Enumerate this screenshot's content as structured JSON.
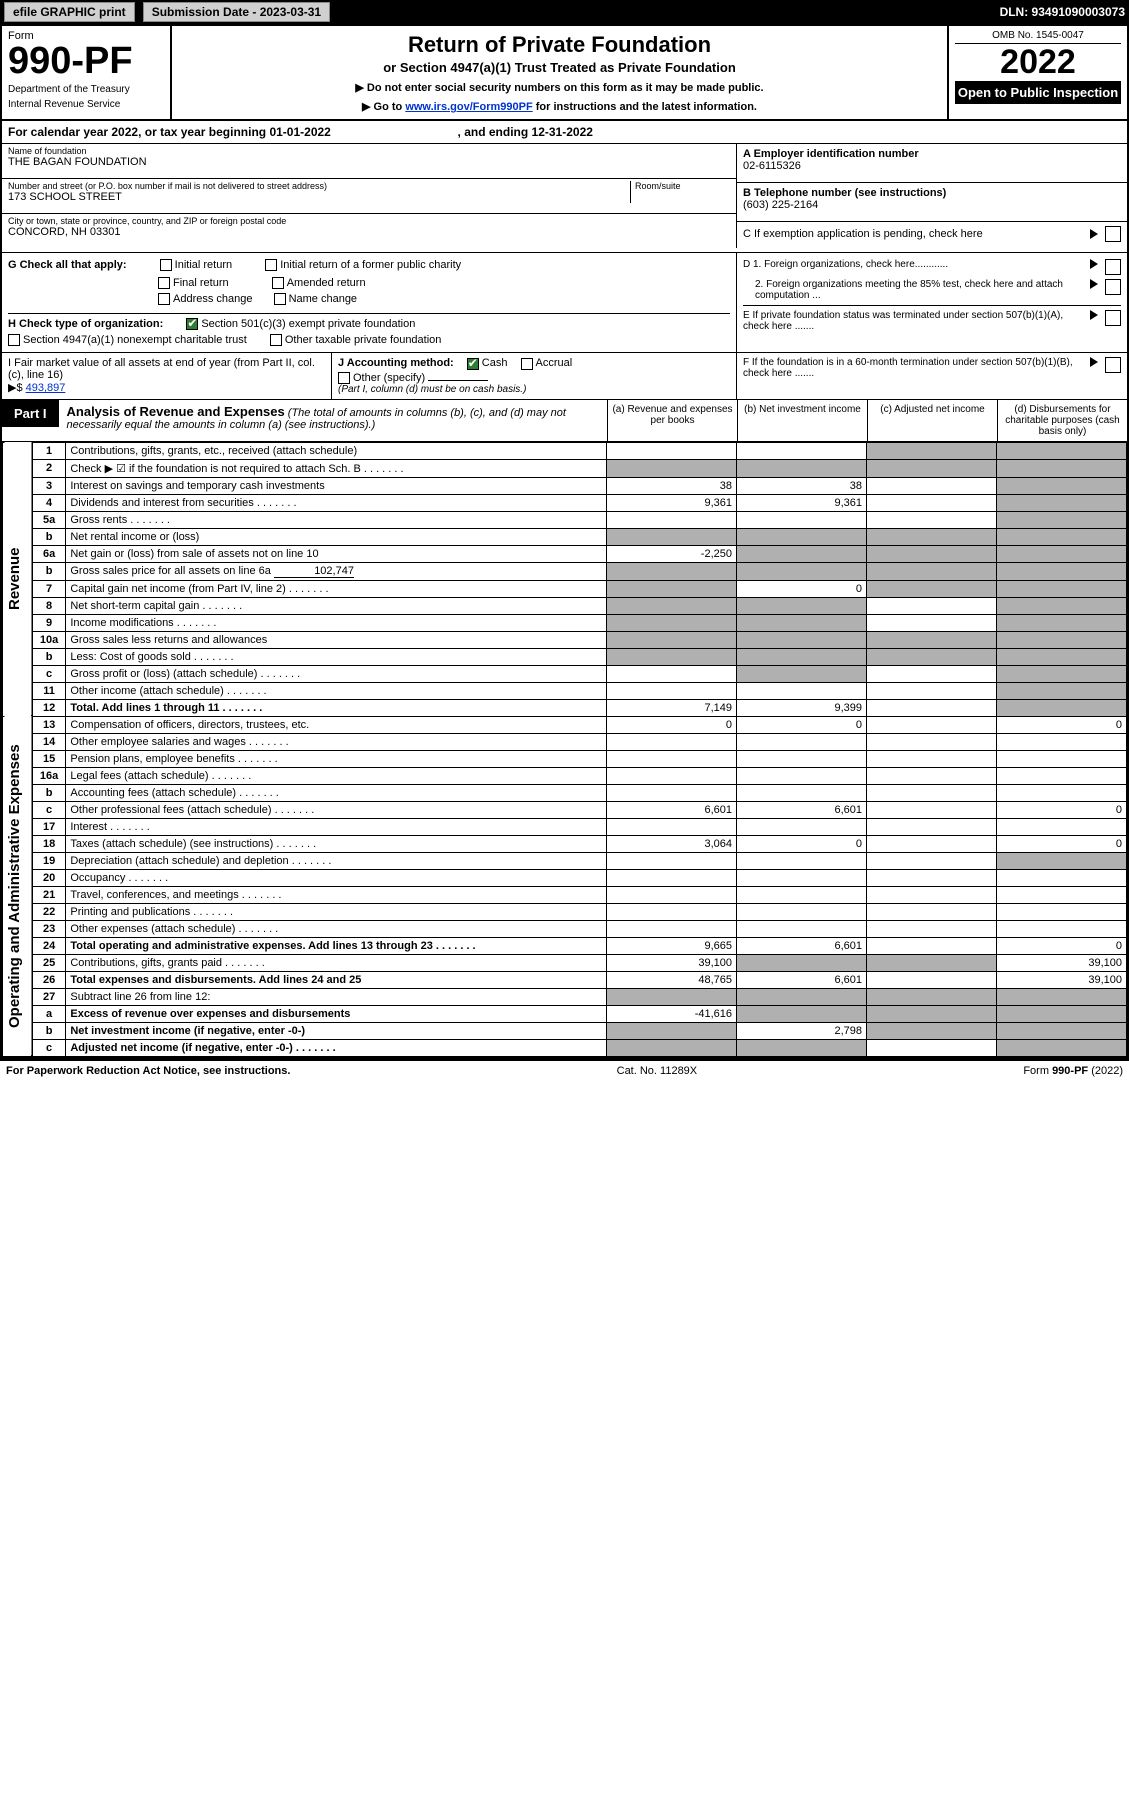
{
  "topbar": {
    "efile": "efile GRAPHIC print",
    "submission_label": "Submission Date - 2023-03-31",
    "dln": "DLN: 93491090003073"
  },
  "header": {
    "form_word": "Form",
    "form_number": "990-PF",
    "dept1": "Department of the Treasury",
    "dept2": "Internal Revenue Service",
    "title": "Return of Private Foundation",
    "subtitle": "or Section 4947(a)(1) Trust Treated as Private Foundation",
    "note1": "▶ Do not enter social security numbers on this form as it may be made public.",
    "note2_pre": "▶ Go to ",
    "note2_link": "www.irs.gov/Form990PF",
    "note2_post": " for instructions and the latest information.",
    "omb": "OMB No. 1545-0047",
    "year": "2022",
    "open": "Open to Public Inspection"
  },
  "cal": {
    "text_pre": "For calendar year 2022, or tax year beginning ",
    "begin": "01-01-2022",
    "text_mid": " , and ending ",
    "end": "12-31-2022"
  },
  "id": {
    "name_label": "Name of foundation",
    "name": "THE BAGAN FOUNDATION",
    "addr_label": "Number and street (or P.O. box number if mail is not delivered to street address)",
    "addr": "173 SCHOOL STREET",
    "room_label": "Room/suite",
    "city_label": "City or town, state or province, country, and ZIP or foreign postal code",
    "city": "CONCORD, NH  03301",
    "ein_label": "A Employer identification number",
    "ein": "02-6115326",
    "tel_label": "B Telephone number (see instructions)",
    "tel": "(603) 225-2164",
    "c_label": "C If exemption application is pending, check here"
  },
  "checks": {
    "g_label": "G Check all that apply:",
    "g_items": [
      "Initial return",
      "Initial return of a former public charity",
      "Final return",
      "Amended return",
      "Address change",
      "Name change"
    ],
    "h_label": "H Check type of organization:",
    "h1": "Section 501(c)(3) exempt private foundation",
    "h2": "Section 4947(a)(1) nonexempt charitable trust",
    "h3": "Other taxable private foundation",
    "i_label": "I Fair market value of all assets at end of year (from Part II, col. (c), line 16)",
    "i_val": "493,897",
    "j_label": "J Accounting method:",
    "j_cash": "Cash",
    "j_accrual": "Accrual",
    "j_other": "Other (specify)",
    "j_note": "(Part I, column (d) must be on cash basis.)",
    "d1": "D 1. Foreign organizations, check here............",
    "d2": "2. Foreign organizations meeting the 85% test, check here and attach computation ...",
    "e": "E  If private foundation status was terminated under section 507(b)(1)(A), check here .......",
    "f": "F  If the foundation is in a 60-month termination under section 507(b)(1)(B), check here .......",
    "tri": "▶"
  },
  "part1": {
    "tab": "Part I",
    "title": "Analysis of Revenue and Expenses",
    "note": " (The total of amounts in columns (b), (c), and (d) may not necessarily equal the amounts in column (a) (see instructions).)",
    "cols": {
      "a": "(a) Revenue and expenses per books",
      "b": "(b) Net investment income",
      "c": "(c) Adjusted net income",
      "d": "(d) Disbursements for charitable purposes (cash basis only)"
    }
  },
  "side": {
    "revenue": "Revenue",
    "expenses": "Operating and Administrative Expenses"
  },
  "lines": [
    {
      "n": "1",
      "d": "Contributions, gifts, grants, etc., received (attach schedule)",
      "a": "",
      "b": "",
      "c": "shade",
      "dcol": "shade"
    },
    {
      "n": "2",
      "d": "Check ▶ ☑ if the foundation is not required to attach Sch. B",
      "dotted": true,
      "a": "shade",
      "b": "shade",
      "c": "shade",
      "dcol": "shade"
    },
    {
      "n": "3",
      "d": "Interest on savings and temporary cash investments",
      "a": "38",
      "b": "38",
      "c": "",
      "dcol": "shade"
    },
    {
      "n": "4",
      "d": "Dividends and interest from securities",
      "dotted": true,
      "a": "9,361",
      "b": "9,361",
      "c": "",
      "dcol": "shade"
    },
    {
      "n": "5a",
      "d": "Gross rents",
      "dotted": true,
      "a": "",
      "b": "",
      "c": "",
      "dcol": "shade"
    },
    {
      "n": "b",
      "d": "Net rental income or (loss)",
      "a": "shade",
      "b": "shade",
      "c": "shade",
      "dcol": "shade"
    },
    {
      "n": "6a",
      "d": "Net gain or (loss) from sale of assets not on line 10",
      "a": "-2,250",
      "b": "shade",
      "c": "shade",
      "dcol": "shade"
    },
    {
      "n": "b",
      "d": "Gross sales price for all assets on line 6a",
      "inline": "102,747",
      "a": "shade",
      "b": "shade",
      "c": "shade",
      "dcol": "shade"
    },
    {
      "n": "7",
      "d": "Capital gain net income (from Part IV, line 2)",
      "dotted": true,
      "a": "shade",
      "b": "0",
      "c": "shade",
      "dcol": "shade"
    },
    {
      "n": "8",
      "d": "Net short-term capital gain",
      "dotted": true,
      "a": "shade",
      "b": "shade",
      "c": "",
      "dcol": "shade"
    },
    {
      "n": "9",
      "d": "Income modifications",
      "dotted": true,
      "a": "shade",
      "b": "shade",
      "c": "",
      "dcol": "shade"
    },
    {
      "n": "10a",
      "d": "Gross sales less returns and allowances",
      "a": "shade",
      "b": "shade",
      "c": "shade",
      "dcol": "shade"
    },
    {
      "n": "b",
      "d": "Less: Cost of goods sold",
      "dotted": true,
      "a": "shade",
      "b": "shade",
      "c": "shade",
      "dcol": "shade"
    },
    {
      "n": "c",
      "d": "Gross profit or (loss) (attach schedule)",
      "dotted": true,
      "a": "",
      "b": "shade",
      "c": "",
      "dcol": "shade"
    },
    {
      "n": "11",
      "d": "Other income (attach schedule)",
      "dotted": true,
      "a": "",
      "b": "",
      "c": "",
      "dcol": "shade"
    },
    {
      "n": "12",
      "d": "Total. Add lines 1 through 11",
      "bold": true,
      "dotted": true,
      "a": "7,149",
      "b": "9,399",
      "c": "",
      "dcol": "shade"
    },
    {
      "n": "13",
      "d": "Compensation of officers, directors, trustees, etc.",
      "a": "0",
      "b": "0",
      "c": "",
      "dcol": "0"
    },
    {
      "n": "14",
      "d": "Other employee salaries and wages",
      "dotted": true,
      "a": "",
      "b": "",
      "c": "",
      "dcol": ""
    },
    {
      "n": "15",
      "d": "Pension plans, employee benefits",
      "dotted": true,
      "a": "",
      "b": "",
      "c": "",
      "dcol": ""
    },
    {
      "n": "16a",
      "d": "Legal fees (attach schedule)",
      "dotted": true,
      "a": "",
      "b": "",
      "c": "",
      "dcol": ""
    },
    {
      "n": "b",
      "d": "Accounting fees (attach schedule)",
      "dotted": true,
      "a": "",
      "b": "",
      "c": "",
      "dcol": ""
    },
    {
      "n": "c",
      "d": "Other professional fees (attach schedule)",
      "dotted": true,
      "a": "6,601",
      "b": "6,601",
      "c": "",
      "dcol": "0"
    },
    {
      "n": "17",
      "d": "Interest",
      "dotted": true,
      "a": "",
      "b": "",
      "c": "",
      "dcol": ""
    },
    {
      "n": "18",
      "d": "Taxes (attach schedule) (see instructions)",
      "dotted": true,
      "a": "3,064",
      "b": "0",
      "c": "",
      "dcol": "0"
    },
    {
      "n": "19",
      "d": "Depreciation (attach schedule) and depletion",
      "dotted": true,
      "a": "",
      "b": "",
      "c": "",
      "dcol": "shade"
    },
    {
      "n": "20",
      "d": "Occupancy",
      "dotted": true,
      "a": "",
      "b": "",
      "c": "",
      "dcol": ""
    },
    {
      "n": "21",
      "d": "Travel, conferences, and meetings",
      "dotted": true,
      "a": "",
      "b": "",
      "c": "",
      "dcol": ""
    },
    {
      "n": "22",
      "d": "Printing and publications",
      "dotted": true,
      "a": "",
      "b": "",
      "c": "",
      "dcol": ""
    },
    {
      "n": "23",
      "d": "Other expenses (attach schedule)",
      "dotted": true,
      "a": "",
      "b": "",
      "c": "",
      "dcol": ""
    },
    {
      "n": "24",
      "d": "Total operating and administrative expenses. Add lines 13 through 23",
      "bold": true,
      "dotted": true,
      "a": "9,665",
      "b": "6,601",
      "c": "",
      "dcol": "0"
    },
    {
      "n": "25",
      "d": "Contributions, gifts, grants paid",
      "dotted": true,
      "a": "39,100",
      "b": "shade",
      "c": "shade",
      "dcol": "39,100"
    },
    {
      "n": "26",
      "d": "Total expenses and disbursements. Add lines 24 and 25",
      "bold": true,
      "a": "48,765",
      "b": "6,601",
      "c": "",
      "dcol": "39,100"
    },
    {
      "n": "27",
      "d": "Subtract line 26 from line 12:",
      "a": "shade",
      "b": "shade",
      "c": "shade",
      "dcol": "shade"
    },
    {
      "n": "a",
      "d": "Excess of revenue over expenses and disbursements",
      "bold": true,
      "a": "-41,616",
      "b": "shade",
      "c": "shade",
      "dcol": "shade"
    },
    {
      "n": "b",
      "d": "Net investment income (if negative, enter -0-)",
      "bold": true,
      "a": "shade",
      "b": "2,798",
      "c": "shade",
      "dcol": "shade"
    },
    {
      "n": "c",
      "d": "Adjusted net income (if negative, enter -0-)",
      "bold": true,
      "dotted": true,
      "a": "shade",
      "b": "shade",
      "c": "",
      "dcol": "shade"
    }
  ],
  "footer": {
    "left": "For Paperwork Reduction Act Notice, see instructions.",
    "mid": "Cat. No. 11289X",
    "right": "Form 990-PF (2022)"
  }
}
